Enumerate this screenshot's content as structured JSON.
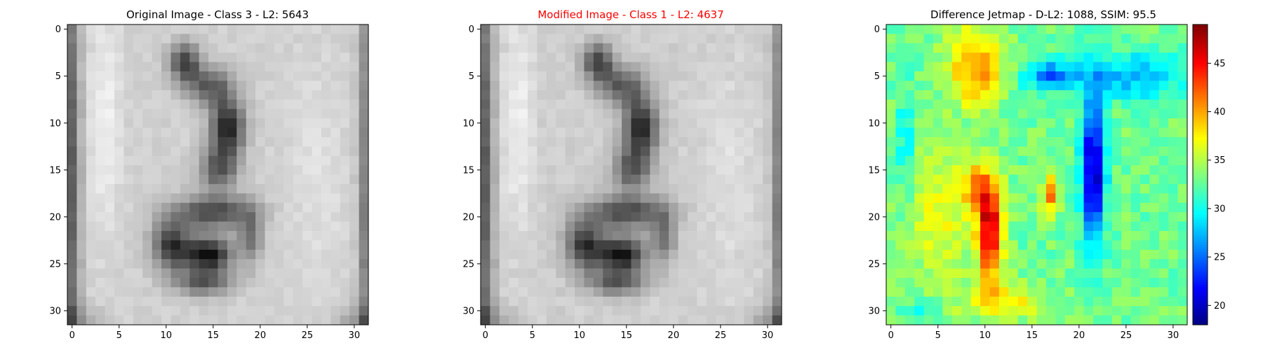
{
  "figure": {
    "panels": [
      {
        "title": "Original Image - Class 3 - L2: 5643",
        "title_color": "#000000",
        "colormap": "gray"
      },
      {
        "title": "Modified Image - Class 1 - L2: 4637",
        "title_color": "#ff0000",
        "colormap": "gray"
      },
      {
        "title": "Difference Jetmap - D-L2: 1088, SSIM: 95.5",
        "title_color": "#000000",
        "colormap": "jet"
      }
    ],
    "colorbar": {
      "min": 18,
      "max": 49,
      "ticks": [
        20,
        25,
        30,
        35,
        40,
        45
      ]
    }
  },
  "chart_data": [
    {
      "type": "heatmap",
      "title": "Original Image - Class 3 - L2: 5643",
      "colormap": "gray",
      "grid_size": [
        32,
        32
      ],
      "xlim": [
        -0.5,
        31.5
      ],
      "ylim": [
        31.5,
        -0.5
      ],
      "xticks": [
        0,
        5,
        10,
        15,
        20,
        25,
        30
      ],
      "yticks": [
        0,
        5,
        10,
        15,
        20,
        25,
        30
      ],
      "content": "grayscale 32x32 image of the handwritten-style digit on light background; dark vertical stroke ~x 12-20, dark loop ~x 8-17 at y 18-28, darkest near (15,24) and (17,10)"
    },
    {
      "type": "heatmap",
      "title": "Modified Image - Class 1 - L2: 4637",
      "colormap": "gray",
      "grid_size": [
        32,
        32
      ],
      "xlim": [
        -0.5,
        31.5
      ],
      "ylim": [
        31.5,
        -0.5
      ],
      "xticks": [
        0,
        5,
        10,
        15,
        20,
        25,
        30
      ],
      "yticks": [
        0,
        5,
        10,
        15,
        20,
        25,
        30
      ]
    },
    {
      "type": "heatmap",
      "title": "Difference Jetmap - D-L2: 1088, SSIM: 95.5",
      "colormap": "jet",
      "grid_size": [
        32,
        32
      ],
      "value_range": [
        18,
        49
      ],
      "xlim": [
        -0.5,
        31.5
      ],
      "ylim": [
        31.5,
        -0.5
      ],
      "xticks": [
        0,
        5,
        10,
        15,
        20,
        25,
        30
      ],
      "yticks": [
        0,
        5,
        10,
        15,
        20,
        25,
        30
      ],
      "colorbar_ticks": [
        20,
        25,
        30,
        35,
        40,
        45
      ],
      "hot_regions": [
        {
          "x": [
            8,
            12
          ],
          "y": [
            17,
            28
          ],
          "peak": 49
        },
        {
          "x": [
            16,
            18
          ],
          "y": [
            15,
            21
          ],
          "peak": 45
        },
        {
          "x": [
            6,
            12
          ],
          "y": [
            1,
            9
          ],
          "peak": 42
        }
      ],
      "cold_regions": [
        {
          "x": [
            20,
            23
          ],
          "y": [
            7,
            25
          ],
          "peak": 18
        },
        {
          "x": [
            14,
            19
          ],
          "y": [
            4,
            7
          ],
          "peak": 21
        }
      ],
      "background_level": 33
    }
  ]
}
